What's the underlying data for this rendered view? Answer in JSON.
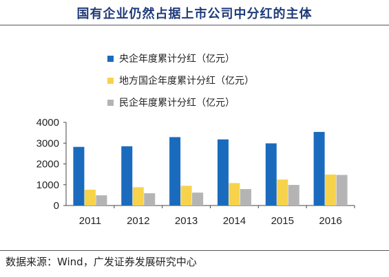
{
  "header": {
    "title": "国有企业仍然占据上市公司中分红的主体"
  },
  "footer": {
    "source": "数据来源：Wind，广发证券发展研究中心"
  },
  "chart_data": {
    "type": "bar",
    "title": "国有企业仍然占据上市公司中分红的主体",
    "categories": [
      "2011",
      "2012",
      "2013",
      "2014",
      "2015",
      "2016"
    ],
    "series": [
      {
        "name": "央企年度累计分红（亿元）",
        "color": "#1a6bbd",
        "values": [
          2820,
          2850,
          3290,
          3180,
          2990,
          3540
        ]
      },
      {
        "name": "地方国企年度累计分红（亿元）",
        "color": "#f7d34b",
        "values": [
          760,
          880,
          950,
          1080,
          1250,
          1490
        ]
      },
      {
        "name": "民企年度累计分红（亿元）",
        "color": "#b4b4b4",
        "values": [
          490,
          590,
          620,
          790,
          990,
          1470
        ]
      }
    ],
    "ylim": [
      0,
      4000
    ],
    "yticks": [
      0,
      1000,
      2000,
      3000,
      4000
    ],
    "grid": false,
    "legend_position": "top-left"
  }
}
